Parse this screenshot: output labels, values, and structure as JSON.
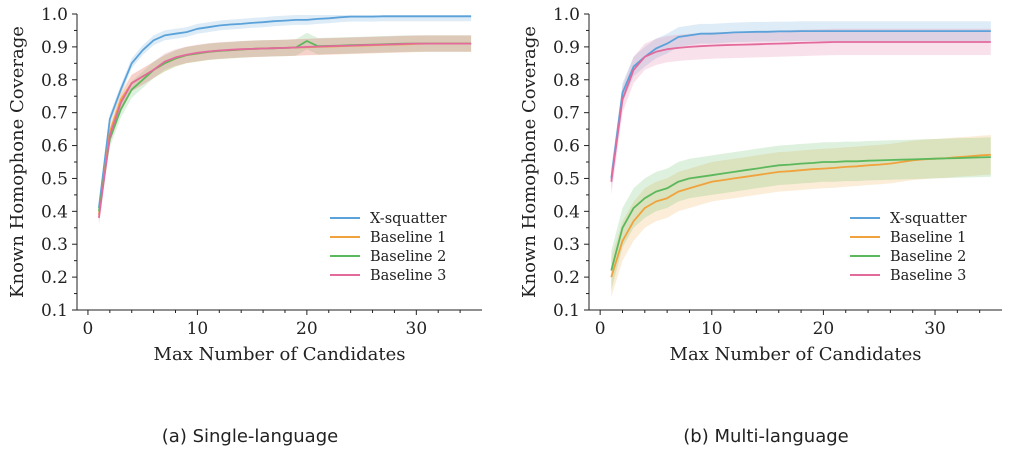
{
  "chart_data": [
    {
      "type": "line",
      "caption": "(a) Single-language",
      "xlabel": "Max Number of Candidates",
      "ylabel": "Known Homophone Coverage",
      "xlim": [
        -1,
        36
      ],
      "ylim": [
        0.1,
        1.0
      ],
      "xticks": [
        0,
        10,
        20,
        30
      ],
      "yticks": [
        0.1,
        0.2,
        0.3,
        0.4,
        0.5,
        0.6,
        0.7,
        0.8,
        0.9,
        1.0
      ],
      "ytick_labels": [
        "0.1",
        "0.2",
        "0.3",
        "0.4",
        "0.5",
        "0.6",
        "0.7",
        "0.8",
        "0.9",
        "1.0"
      ],
      "legend_position": "lower-right",
      "series": [
        {
          "name": "X-squatter",
          "color": "#5aa2d9",
          "x": [
            1,
            2,
            3,
            4,
            5,
            6,
            7,
            8,
            9,
            10,
            11,
            12,
            13,
            14,
            15,
            16,
            17,
            18,
            19,
            20,
            21,
            22,
            23,
            24,
            25,
            26,
            27,
            28,
            29,
            30,
            31,
            32,
            33,
            34,
            35
          ],
          "y": [
            0.41,
            0.68,
            0.77,
            0.85,
            0.89,
            0.92,
            0.935,
            0.94,
            0.945,
            0.955,
            0.96,
            0.965,
            0.968,
            0.97,
            0.973,
            0.975,
            0.978,
            0.98,
            0.982,
            0.982,
            0.985,
            0.987,
            0.99,
            0.992,
            0.992,
            0.992,
            0.993,
            0.993,
            0.993,
            0.993,
            0.993,
            0.993,
            0.993,
            0.993,
            0.993
          ],
          "band": 0.015
        },
        {
          "name": "Baseline 1",
          "color": "#f0a33c",
          "x": [
            1,
            2,
            3,
            4,
            5,
            6,
            7,
            8,
            9,
            10,
            11,
            12,
            13,
            14,
            15,
            16,
            17,
            18,
            19,
            20,
            21,
            22,
            23,
            24,
            25,
            26,
            27,
            28,
            29,
            30,
            31,
            32,
            33,
            34,
            35
          ],
          "y": [
            0.39,
            0.64,
            0.74,
            0.79,
            0.81,
            0.83,
            0.85,
            0.865,
            0.875,
            0.88,
            0.885,
            0.888,
            0.89,
            0.892,
            0.894,
            0.895,
            0.896,
            0.897,
            0.898,
            0.899,
            0.9,
            0.901,
            0.902,
            0.903,
            0.904,
            0.905,
            0.906,
            0.907,
            0.908,
            0.909,
            0.91,
            0.91,
            0.91,
            0.91,
            0.91
          ],
          "band": 0.025
        },
        {
          "name": "Baseline 2",
          "color": "#5cb85c",
          "x": [
            1,
            2,
            3,
            4,
            5,
            6,
            7,
            8,
            9,
            10,
            11,
            12,
            13,
            14,
            15,
            16,
            17,
            18,
            19,
            20,
            21,
            22,
            23,
            24,
            25,
            26,
            27,
            28,
            29,
            30,
            31,
            32,
            33,
            34,
            35
          ],
          "y": [
            0.4,
            0.62,
            0.71,
            0.77,
            0.8,
            0.83,
            0.85,
            0.865,
            0.875,
            0.88,
            0.885,
            0.888,
            0.89,
            0.892,
            0.894,
            0.895,
            0.896,
            0.897,
            0.898,
            0.918,
            0.902,
            0.903,
            0.904,
            0.905,
            0.906,
            0.907,
            0.908,
            0.909,
            0.91,
            0.91,
            0.91,
            0.91,
            0.91,
            0.91,
            0.91
          ],
          "band": 0.025
        },
        {
          "name": "Baseline 3",
          "color": "#e36a9c",
          "x": [
            1,
            2,
            3,
            4,
            5,
            6,
            7,
            8,
            9,
            10,
            11,
            12,
            13,
            14,
            15,
            16,
            17,
            18,
            19,
            20,
            21,
            22,
            23,
            24,
            25,
            26,
            27,
            28,
            29,
            30,
            31,
            32,
            33,
            34,
            35
          ],
          "y": [
            0.38,
            0.63,
            0.73,
            0.79,
            0.81,
            0.83,
            0.855,
            0.868,
            0.876,
            0.882,
            0.886,
            0.889,
            0.891,
            0.893,
            0.894,
            0.895,
            0.896,
            0.897,
            0.898,
            0.9,
            0.901,
            0.902,
            0.903,
            0.904,
            0.905,
            0.906,
            0.907,
            0.908,
            0.909,
            0.91,
            0.91,
            0.91,
            0.91,
            0.91,
            0.91
          ],
          "band": 0.025
        }
      ]
    },
    {
      "type": "line",
      "caption": "(b) Multi-language",
      "xlabel": "Max Number of Candidates",
      "ylabel": "Known Homophone Coverage",
      "xlim": [
        -1,
        36
      ],
      "ylim": [
        0.1,
        1.0
      ],
      "xticks": [
        0,
        10,
        20,
        30
      ],
      "yticks": [
        0.1,
        0.2,
        0.3,
        0.4,
        0.5,
        0.6,
        0.7,
        0.8,
        0.9,
        1.0
      ],
      "ytick_labels": [
        "0.1",
        "0.2",
        "0.3",
        "0.4",
        "0.5",
        "0.6",
        "0.7",
        "0.8",
        "0.9",
        "1.0"
      ],
      "legend_position": "lower-right",
      "series": [
        {
          "name": "X-squatter",
          "color": "#5aa2d9",
          "x": [
            1,
            2,
            3,
            4,
            5,
            6,
            7,
            8,
            9,
            10,
            11,
            12,
            13,
            14,
            15,
            16,
            17,
            18,
            19,
            20,
            21,
            22,
            23,
            24,
            25,
            26,
            27,
            28,
            29,
            30,
            31,
            32,
            33,
            34,
            35
          ],
          "y": [
            0.5,
            0.76,
            0.84,
            0.87,
            0.895,
            0.91,
            0.93,
            0.935,
            0.94,
            0.94,
            0.942,
            0.944,
            0.945,
            0.946,
            0.946,
            0.947,
            0.947,
            0.948,
            0.948,
            0.948,
            0.948,
            0.948,
            0.948,
            0.948,
            0.948,
            0.948,
            0.948,
            0.948,
            0.948,
            0.948,
            0.948,
            0.948,
            0.948,
            0.948,
            0.948
          ],
          "band": 0.03
        },
        {
          "name": "Baseline 1",
          "color": "#f0a33c",
          "x": [
            1,
            2,
            3,
            4,
            5,
            6,
            7,
            8,
            9,
            10,
            11,
            12,
            13,
            14,
            15,
            16,
            17,
            18,
            19,
            20,
            21,
            22,
            23,
            24,
            25,
            26,
            27,
            28,
            29,
            30,
            31,
            32,
            33,
            34,
            35
          ],
          "y": [
            0.2,
            0.31,
            0.37,
            0.41,
            0.43,
            0.44,
            0.46,
            0.47,
            0.48,
            0.49,
            0.495,
            0.5,
            0.505,
            0.51,
            0.515,
            0.52,
            0.522,
            0.525,
            0.528,
            0.53,
            0.532,
            0.535,
            0.537,
            0.54,
            0.542,
            0.545,
            0.55,
            0.555,
            0.558,
            0.56,
            0.562,
            0.565,
            0.567,
            0.57,
            0.572
          ],
          "band": 0.06
        },
        {
          "name": "Baseline 2",
          "color": "#5cb85c",
          "x": [
            1,
            2,
            3,
            4,
            5,
            6,
            7,
            8,
            9,
            10,
            11,
            12,
            13,
            14,
            15,
            16,
            17,
            18,
            19,
            20,
            21,
            22,
            23,
            24,
            25,
            26,
            27,
            28,
            29,
            30,
            31,
            32,
            33,
            34,
            35
          ],
          "y": [
            0.22,
            0.35,
            0.41,
            0.44,
            0.46,
            0.47,
            0.49,
            0.5,
            0.505,
            0.51,
            0.515,
            0.52,
            0.525,
            0.53,
            0.535,
            0.54,
            0.542,
            0.545,
            0.547,
            0.55,
            0.55,
            0.552,
            0.552,
            0.554,
            0.555,
            0.556,
            0.557,
            0.558,
            0.559,
            0.56,
            0.561,
            0.562,
            0.563,
            0.564,
            0.565
          ],
          "band": 0.06
        },
        {
          "name": "Baseline 3",
          "color": "#e36a9c",
          "x": [
            1,
            2,
            3,
            4,
            5,
            6,
            7,
            8,
            9,
            10,
            11,
            12,
            13,
            14,
            15,
            16,
            17,
            18,
            19,
            20,
            21,
            22,
            23,
            24,
            25,
            26,
            27,
            28,
            29,
            30,
            31,
            32,
            33,
            34,
            35
          ],
          "y": [
            0.49,
            0.74,
            0.83,
            0.87,
            0.885,
            0.893,
            0.897,
            0.9,
            0.902,
            0.904,
            0.905,
            0.906,
            0.907,
            0.908,
            0.909,
            0.91,
            0.911,
            0.912,
            0.913,
            0.914,
            0.915,
            0.915,
            0.915,
            0.915,
            0.915,
            0.915,
            0.915,
            0.915,
            0.915,
            0.915,
            0.915,
            0.915,
            0.915,
            0.915,
            0.915
          ],
          "band": 0.04
        }
      ]
    }
  ]
}
